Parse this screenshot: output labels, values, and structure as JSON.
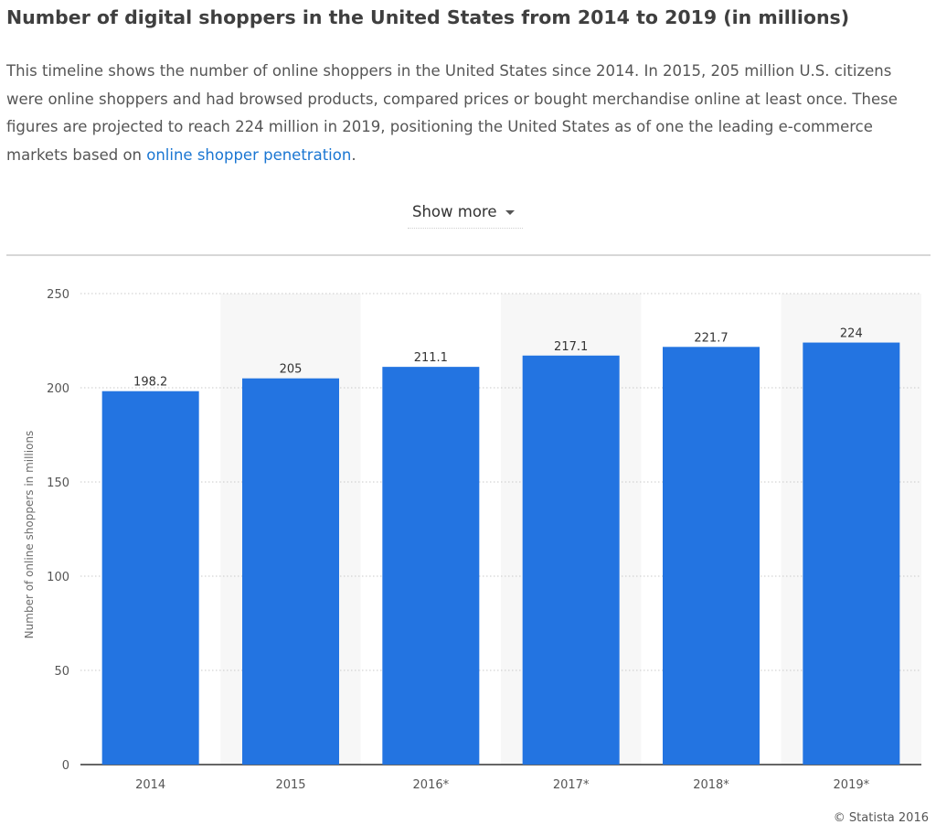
{
  "header": {
    "title": "Number of digital shoppers in the United States from 2014 to 2019 (in millions)",
    "description_text": "This timeline shows the number of online shoppers in the United States since 2014. In 2015, 205 million U.S. citizens were online shoppers and had browsed products, compared prices or bought merchandise online at least once. These figures are projected to reach 224 million in 2019, positioning the United States as of one the leading e-commerce markets based on ",
    "description_link": "online shopper penetration",
    "description_end": ".",
    "show_more_label": "Show more"
  },
  "chart_data": {
    "type": "bar",
    "categories": [
      "2014",
      "2015",
      "2016*",
      "2017*",
      "2018*",
      "2019*"
    ],
    "values": [
      198.2,
      205,
      211.1,
      217.1,
      221.7,
      224
    ],
    "data_labels": [
      "198.2",
      "205",
      "211.1",
      "217.1",
      "221.7",
      "224"
    ],
    "title": "",
    "xlabel": "",
    "ylabel": "Number of online shoppers in millions",
    "ylim": [
      0,
      250
    ],
    "yticks": [
      0,
      50,
      100,
      150,
      200,
      250
    ],
    "grid": true,
    "legend": "none",
    "bar_color": "#2374e1",
    "alt_band_color": "#f7f7f7"
  },
  "footer": {
    "credit": "© Statista 2016"
  }
}
